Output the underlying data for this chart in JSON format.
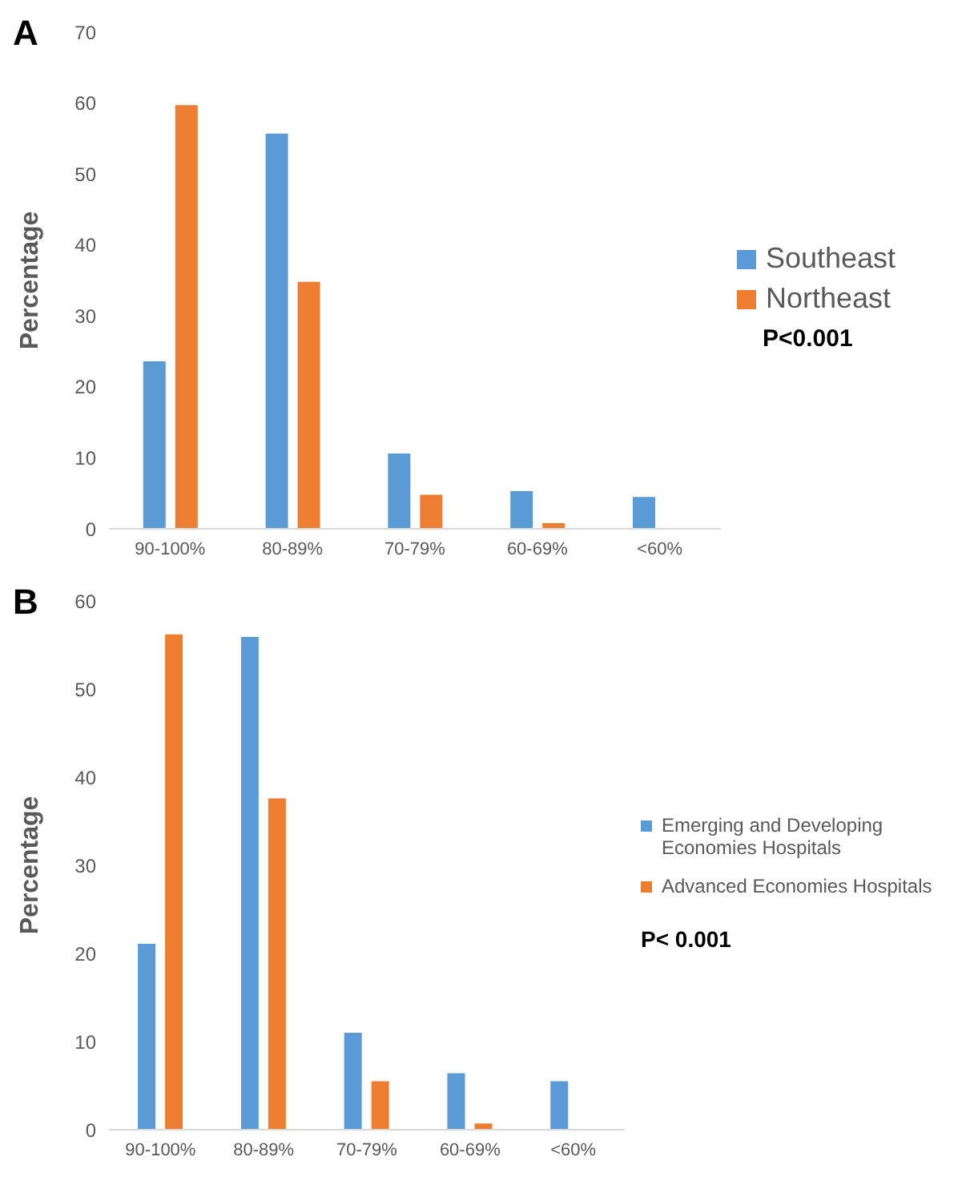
{
  "chart_data": [
    {
      "type": "bar",
      "title": "A",
      "ylabel": "Percentage",
      "categories": [
        "90-100%",
        "80-89%",
        "70-79%",
        "60-69%",
        "<60%"
      ],
      "series": [
        {
          "name": "Southeast",
          "color": "#5b9bd5",
          "values": [
            23.6,
            55.7,
            10.6,
            5.3,
            4.5
          ]
        },
        {
          "name": "Northeast",
          "color": "#ed7d31",
          "values": [
            59.7,
            34.8,
            4.8,
            0.8,
            null
          ]
        }
      ],
      "ylim": [
        0,
        70
      ],
      "yticks": [
        0,
        10,
        20,
        30,
        40,
        50,
        60,
        70
      ],
      "grid": false,
      "legend": "right",
      "annotations": [
        "P<0.001"
      ]
    },
    {
      "type": "bar",
      "title": "B",
      "ylabel": "Percentage",
      "categories": [
        "90-100%",
        "80-89%",
        "70-79%",
        "60-69%",
        "<60%"
      ],
      "series": [
        {
          "name": "Emerging and Developing Economies Hospitals",
          "color": "#5b9bd5",
          "values": [
            21.1,
            55.9,
            11.0,
            6.4,
            5.5
          ]
        },
        {
          "name": "Advanced Economies  Hospitals",
          "color": "#ed7d31",
          "values": [
            56.2,
            37.6,
            5.5,
            0.7,
            null
          ]
        }
      ],
      "ylim": [
        0,
        60
      ],
      "yticks": [
        0,
        10,
        20,
        30,
        40,
        50,
        60
      ],
      "grid": false,
      "legend": "right",
      "annotations": [
        "P< 0.001"
      ]
    }
  ]
}
